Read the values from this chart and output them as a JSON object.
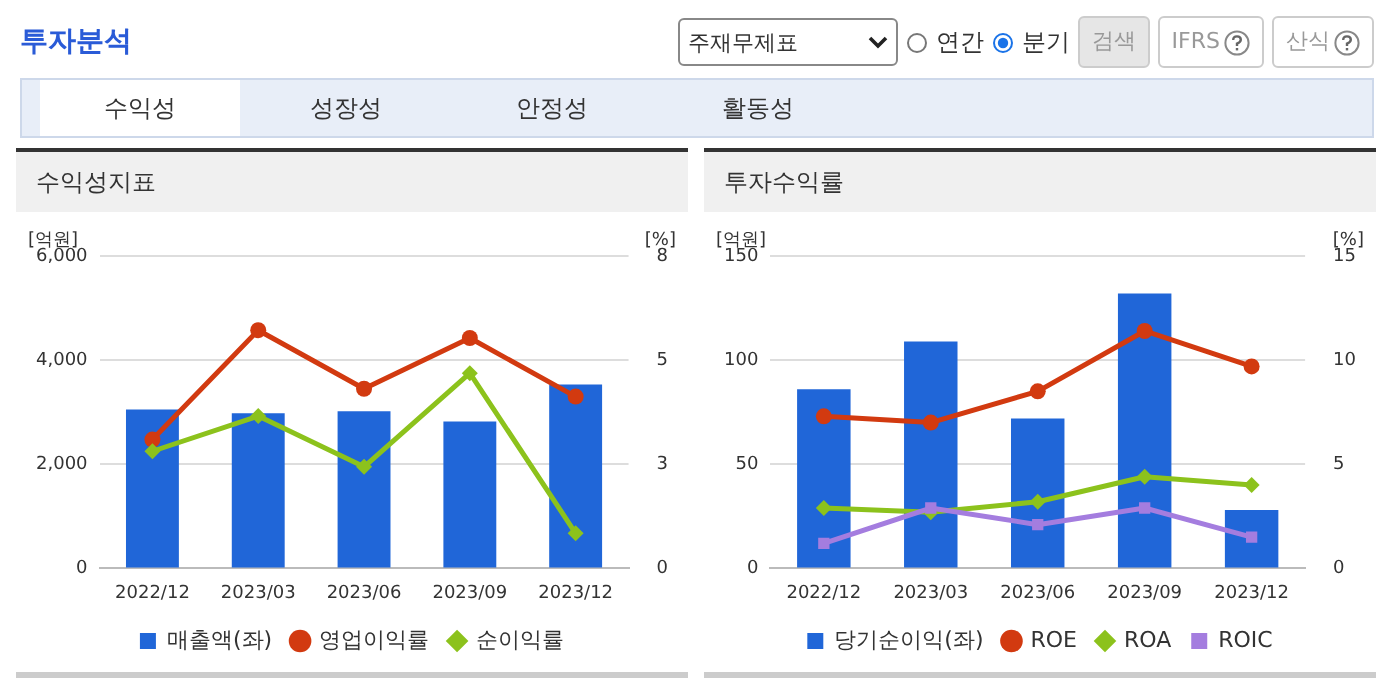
{
  "chart_data": [
    {
      "type": "other",
      "title": "투자분석",
      "annotations": [
        "주재무제표",
        "연간",
        "분기",
        "검색",
        "IFRS",
        "산식",
        "수익성",
        "성장성",
        "안정성",
        "활동성"
      ]
    },
    {
      "type": "bar",
      "title": "수익성지표",
      "ylabel": "[억원]",
      "y2label": "[%]",
      "categories": [
        "2022/12",
        "2023/03",
        "2023/06",
        "2023/09",
        "2023/12"
      ],
      "ylim": [
        0,
        6000
      ],
      "yticks": [
        0,
        {
          "value": 2000,
          "label": "2,000"
        },
        {
          "value": 4000,
          "label": "4,000"
        },
        {
          "value": 6000,
          "label": "6,000"
        }
      ],
      "y2lim": [
        0,
        8
      ],
      "y2ticks": [
        0,
        {
          "value": 2.667,
          "label": "3"
        },
        {
          "value": 5.333,
          "label": "5"
        },
        8
      ],
      "grid": "y",
      "legend": "bottom",
      "series": [
        {
          "name": "매출액(좌)",
          "type": "bar",
          "color": "#2066d8",
          "values": [
            3050,
            2980,
            3020,
            2820,
            3530
          ]
        },
        {
          "name": "영업이익률",
          "type": "line",
          "axis": "y2",
          "marker": "circle",
          "color": "#d23a10",
          "values": [
            3.3,
            6.1,
            4.6,
            5.9,
            4.4
          ]
        },
        {
          "name": "순이익률",
          "type": "line",
          "axis": "y2",
          "marker": "diamond",
          "color": "#8cc21c",
          "values": [
            3.0,
            3.9,
            2.6,
            5.0,
            0.9
          ]
        }
      ]
    },
    {
      "type": "bar",
      "title": "투자수익률",
      "ylabel": "[억원]",
      "y2label": "[%]",
      "categories": [
        "2022/12",
        "2023/03",
        "2023/06",
        "2023/09",
        "2023/12"
      ],
      "ylim": [
        0,
        150
      ],
      "yticks": [
        0,
        50,
        100,
        150
      ],
      "y2lim": [
        0,
        15
      ],
      "y2ticks": [
        0,
        5,
        10,
        15
      ],
      "grid": "y",
      "legend": "bottom",
      "series": [
        {
          "name": "당기순이익(좌)",
          "type": "bar",
          "color": "#2066d8",
          "values": [
            86,
            109,
            72,
            132,
            28
          ]
        },
        {
          "name": "ROE",
          "type": "line",
          "axis": "y2",
          "marker": "circle",
          "color": "#d23a10",
          "values": [
            7.3,
            7.0,
            8.5,
            11.4,
            9.7
          ]
        },
        {
          "name": "ROA",
          "type": "line",
          "axis": "y2",
          "marker": "diamond",
          "color": "#8cc21c",
          "values": [
            2.9,
            2.7,
            3.2,
            4.4,
            4.0
          ]
        },
        {
          "name": "ROIC",
          "type": "line",
          "axis": "y2",
          "marker": "square",
          "color": "#a47ddf",
          "values": [
            1.2,
            2.9,
            2.1,
            2.9,
            1.5
          ]
        }
      ]
    }
  ]
}
